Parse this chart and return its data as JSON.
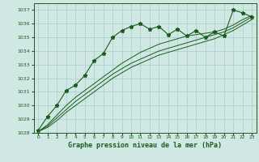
{
  "background_color": "#cfe8e4",
  "grid_color": "#a8cccc",
  "line_color": "#1a5c1a",
  "marker_color": "#1a5c1a",
  "title": "Graphe pression niveau de la mer (hPa)",
  "ylim": [
    1028,
    1037.5
  ],
  "xlim": [
    -0.5,
    23.5
  ],
  "yticks": [
    1028,
    1029,
    1030,
    1031,
    1032,
    1033,
    1034,
    1035,
    1036,
    1037
  ],
  "xticks": [
    0,
    1,
    2,
    3,
    4,
    5,
    6,
    7,
    8,
    9,
    10,
    11,
    12,
    13,
    14,
    15,
    16,
    17,
    18,
    19,
    20,
    21,
    22,
    23
  ],
  "series1": [
    1028.2,
    1029.2,
    1030.0,
    1031.1,
    1031.5,
    1032.2,
    1033.3,
    1033.8,
    1035.0,
    1035.5,
    1035.8,
    1036.0,
    1035.6,
    1035.8,
    1035.2,
    1035.6,
    1035.1,
    1035.5,
    1035.0,
    1035.4,
    1035.1,
    1037.0,
    1036.8,
    1036.5
  ],
  "series2": [
    1028.1,
    1028.6,
    1029.3,
    1030.0,
    1030.6,
    1031.1,
    1031.6,
    1032.1,
    1032.6,
    1033.1,
    1033.5,
    1033.9,
    1034.2,
    1034.5,
    1034.7,
    1034.9,
    1035.1,
    1035.2,
    1035.3,
    1035.4,
    1035.6,
    1035.9,
    1036.3,
    1036.6
  ],
  "series3": [
    1028.1,
    1028.5,
    1029.1,
    1029.7,
    1030.3,
    1030.8,
    1031.3,
    1031.8,
    1032.3,
    1032.7,
    1033.1,
    1033.4,
    1033.7,
    1034.0,
    1034.2,
    1034.4,
    1034.6,
    1034.8,
    1035.0,
    1035.2,
    1035.4,
    1035.7,
    1036.1,
    1036.5
  ],
  "series4": [
    1028.1,
    1028.4,
    1028.9,
    1029.5,
    1030.0,
    1030.5,
    1031.0,
    1031.5,
    1032.0,
    1032.4,
    1032.8,
    1033.1,
    1033.4,
    1033.7,
    1033.9,
    1034.1,
    1034.3,
    1034.5,
    1034.7,
    1034.9,
    1035.2,
    1035.5,
    1035.9,
    1036.3
  ]
}
